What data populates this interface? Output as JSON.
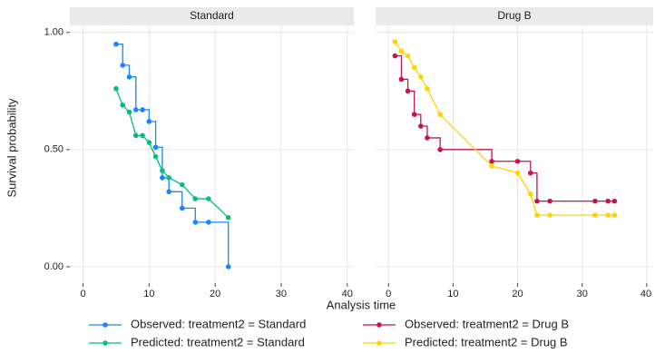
{
  "chart_data": {
    "type": "line",
    "ylabel": "Survival probability",
    "xlabel": "Analysis time",
    "xlim": [
      -2,
      41
    ],
    "ylim": [
      -0.07,
      1.03
    ],
    "xticks": [
      0,
      10,
      20,
      30,
      40
    ],
    "yticks": [
      {
        "value": 0,
        "label": "0.00"
      },
      {
        "value": 0.5,
        "label": "0.50"
      },
      {
        "value": 1,
        "label": "1.00"
      }
    ],
    "grid": true,
    "panels": [
      {
        "title": "Standard",
        "series": [
          {
            "name": "Observed: treatment2 = Standard",
            "color": "#1a85ff",
            "step": true,
            "x": [
              5,
              6,
              7,
              8,
              9,
              10,
              11,
              12,
              13,
              15,
              17,
              19,
              22
            ],
            "values": [
              0.95,
              0.86,
              0.81,
              0.67,
              0.67,
              0.62,
              0.51,
              0.38,
              0.32,
              0.25,
              0.19,
              0.19,
              0
            ]
          },
          {
            "name": "Predicted: treatment2 = Standard",
            "color": "#00bf7f",
            "step": false,
            "x": [
              5,
              6,
              7,
              8,
              9,
              10,
              11,
              12,
              13,
              15,
              17,
              19,
              22
            ],
            "values": [
              0.76,
              0.69,
              0.66,
              0.56,
              0.56,
              0.53,
              0.47,
              0.41,
              0.38,
              0.35,
              0.29,
              0.29,
              0.21
            ]
          }
        ]
      },
      {
        "title": "Drug B",
        "series": [
          {
            "name": "Observed: treatment2 = Drug B",
            "color": "#c4154f",
            "step": true,
            "x": [
              1,
              2,
              3,
              4,
              5,
              6,
              8,
              16,
              20,
              22,
              23,
              25,
              32,
              34,
              35
            ],
            "values": [
              0.9,
              0.8,
              0.75,
              0.65,
              0.6,
              0.55,
              0.5,
              0.45,
              0.45,
              0.4,
              0.28,
              0.28,
              0.28,
              0.28,
              0.28
            ]
          },
          {
            "name": "Predicted: treatment2 = Drug B",
            "color": "#ffd400",
            "step": false,
            "x": [
              1,
              2,
              3,
              4,
              5,
              6,
              8,
              16,
              20,
              22,
              23,
              25,
              32,
              34,
              35
            ],
            "values": [
              0.96,
              0.92,
              0.9,
              0.85,
              0.81,
              0.76,
              0.65,
              0.43,
              0.4,
              0.31,
              0.22,
              0.22,
              0.22,
              0.22,
              0.22
            ]
          }
        ]
      }
    ]
  }
}
